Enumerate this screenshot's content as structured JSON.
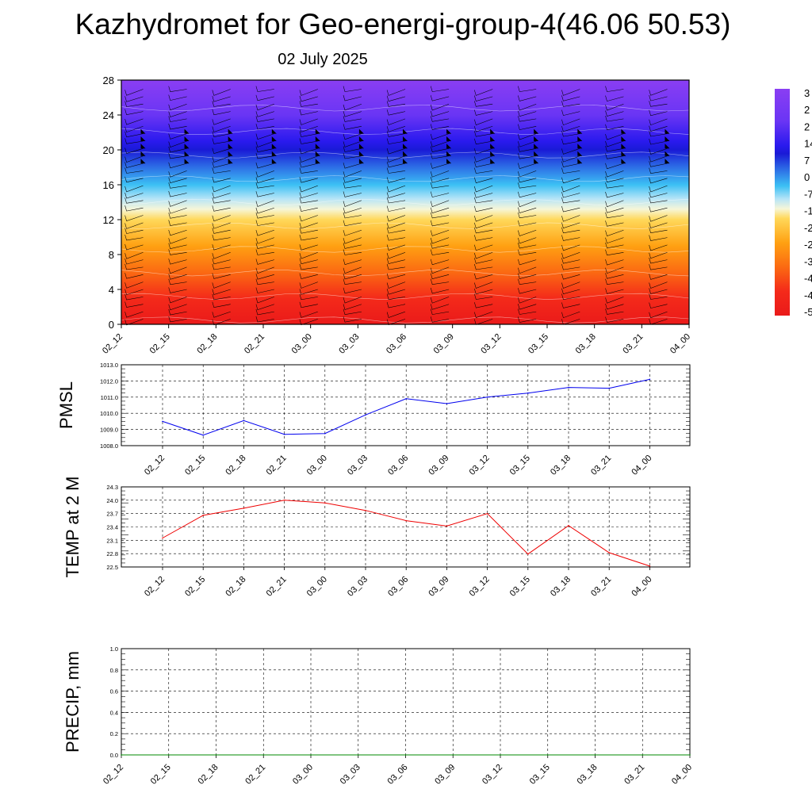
{
  "header": {
    "title": "Kazhydromet for Geo-energi-group-4(46.06 50.53)",
    "date": "02 July 2025"
  },
  "time_labels": [
    "02_12",
    "02_15",
    "02_18",
    "02_21",
    "03_00",
    "03_03",
    "03_06",
    "03_09",
    "03_12",
    "03_15",
    "03_18",
    "03_21",
    "04_00"
  ],
  "colors": {
    "pmsl_line": "#0000ee",
    "temp_line": "#ee0000",
    "precip_line": "#008800",
    "grid": "#000000"
  },
  "chart_data": [
    {
      "type": "heatmap",
      "name": "cross-section",
      "x": [
        "02_12",
        "02_15",
        "02_18",
        "02_21",
        "03_00",
        "03_03",
        "03_06",
        "03_09",
        "03_12",
        "03_15",
        "03_18",
        "03_21",
        "04_00"
      ],
      "y_ticks": [
        0,
        4,
        8,
        12,
        16,
        20,
        24,
        28
      ],
      "ylim": [
        0,
        28
      ],
      "colorbar_labels": [
        "3",
        "2",
        "2",
        "14",
        "7",
        "0",
        "-7",
        "-1",
        "-2",
        "-2",
        "-3",
        "-4",
        "-4",
        "-5"
      ],
      "colorbar_stops": [
        {
          "v": 0,
          "c": "#ea1a1a"
        },
        {
          "v": 3,
          "c": "#f42a1a"
        },
        {
          "v": 6,
          "c": "#fb6a12"
        },
        {
          "v": 9,
          "c": "#ffa112"
        },
        {
          "v": 12,
          "c": "#ffd85a"
        },
        {
          "v": 13.2,
          "c": "#f6f6d8"
        },
        {
          "v": 14.4,
          "c": "#b6e4f7"
        },
        {
          "v": 16,
          "c": "#3cc0f4"
        },
        {
          "v": 18,
          "c": "#2d6fe6"
        },
        {
          "v": 20,
          "c": "#1a1ad6"
        },
        {
          "v": 21,
          "c": "#2a1aee"
        },
        {
          "v": 24,
          "c": "#6a35f4"
        },
        {
          "v": 28,
          "c": "#8a3ef3"
        }
      ]
    },
    {
      "type": "line",
      "name": "PMSL",
      "ylabel": "PMSL",
      "x": [
        "02_12",
        "02_15",
        "02_18",
        "02_21",
        "03_00",
        "03_03",
        "03_06",
        "03_09",
        "03_12",
        "03_15",
        "03_18",
        "03_21",
        "04_00"
      ],
      "values": [
        1009.5,
        1008.65,
        1009.55,
        1008.7,
        1008.75,
        1009.9,
        1010.9,
        1010.6,
        1011.0,
        1011.25,
        1011.6,
        1011.55,
        1012.1
      ],
      "ylim": [
        1008.0,
        1013.0
      ],
      "yticks": [
        "1013.0",
        "1012.0",
        "1011.0",
        "1010.0",
        "1009.0",
        "1008.0"
      ],
      "ytick_values": [
        1013.0,
        1012.0,
        1011.0,
        1010.0,
        1009.0,
        1008.0
      ]
    },
    {
      "type": "line",
      "name": "TEMP at 2 M",
      "ylabel": "TEMP at 2 M",
      "x": [
        "02_12",
        "02_15",
        "02_18",
        "02_21",
        "03_00",
        "03_03",
        "03_06",
        "03_09",
        "03_12",
        "03_15",
        "03_18",
        "03_21",
        "04_00"
      ],
      "values": [
        23.15,
        23.66,
        23.82,
        24.0,
        23.94,
        23.77,
        23.54,
        23.42,
        23.7,
        22.79,
        23.43,
        22.82,
        22.52
      ],
      "ylim": [
        22.5,
        24.3
      ],
      "yticks": [
        "24.3",
        "24.0",
        "23.7",
        "23.4",
        "23.1",
        "22.8",
        "22.5"
      ],
      "ytick_values": [
        24.3,
        24.0,
        23.7,
        23.4,
        23.1,
        22.8,
        22.5
      ]
    },
    {
      "type": "line",
      "name": "PRECIP, mm",
      "ylabel": "PRECIP, mm",
      "x": [
        "02_12",
        "02_15",
        "02_18",
        "02_21",
        "03_00",
        "03_03",
        "03_06",
        "03_09",
        "03_12",
        "03_15",
        "03_18",
        "03_21",
        "04_00"
      ],
      "values": [
        0,
        0,
        0,
        0,
        0,
        0,
        0,
        0,
        0,
        0,
        0,
        0,
        0
      ],
      "ylim": [
        0.0,
        1.0
      ],
      "yticks": [
        "1.0",
        "0.8",
        "0.6",
        "0.4",
        "0.2",
        "0.0"
      ],
      "ytick_values": [
        1.0,
        0.8,
        0.6,
        0.4,
        0.2,
        0.0
      ]
    }
  ]
}
